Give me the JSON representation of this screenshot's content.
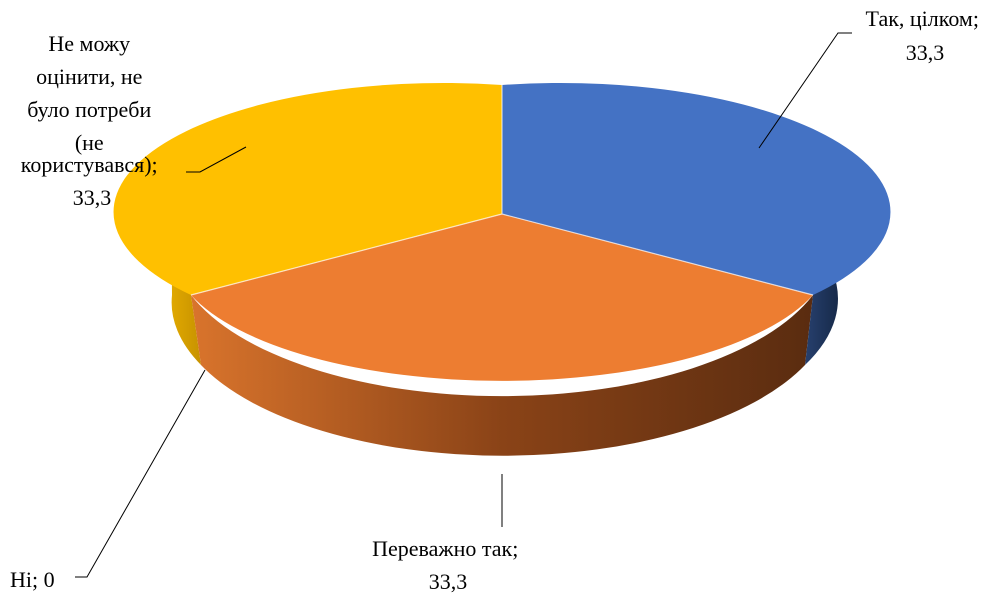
{
  "chart_data": {
    "type": "pie",
    "style": "3d",
    "title": "",
    "data_labels": {
      "show_category": true,
      "show_value": true,
      "separator": "; "
    },
    "slices": [
      {
        "category": "Так, цілком",
        "value": 33.3,
        "value_text": "33,3",
        "color": "#4472C4"
      },
      {
        "category": "Переважно так",
        "value": 33.3,
        "value_text": "33,3",
        "color": "#ED7D31"
      },
      {
        "category": "Ні",
        "value": 0,
        "value_text": "0",
        "color": "#A5A5A5"
      },
      {
        "category": "Не можу оцінити, не було потреби (не користувався)",
        "value": 33.3,
        "value_text": "33,3",
        "color": "#FFC000"
      }
    ]
  }
}
